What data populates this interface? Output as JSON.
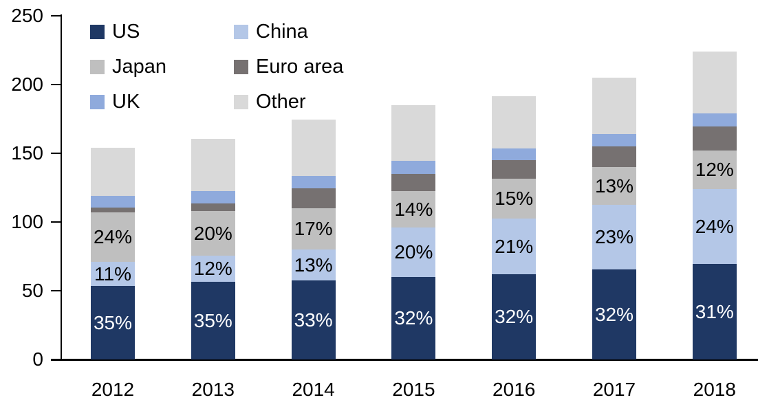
{
  "chart_data": {
    "type": "bar",
    "stacked": true,
    "title": "",
    "xlabel": "",
    "ylabel": "",
    "categories": [
      "2012",
      "2013",
      "2014",
      "2015",
      "2016",
      "2017",
      "2018"
    ],
    "series": [
      {
        "name": "US",
        "color": "#1f3864",
        "label_color": "#ffffff",
        "values": [
          53.5,
          56.5,
          57.5,
          60,
          62,
          65.5,
          69.5
        ],
        "labels": [
          "35%",
          "35%",
          "33%",
          "32%",
          "32%",
          "32%",
          "31%"
        ]
      },
      {
        "name": "China",
        "color": "#b4c7e7",
        "label_color": "#000000",
        "values": [
          17.5,
          19,
          22.5,
          36,
          40.5,
          47,
          54.5
        ],
        "labels": [
          "11%",
          "12%",
          "13%",
          "20%",
          "21%",
          "23%",
          "24%"
        ]
      },
      {
        "name": "Japan",
        "color": "#bfbfbf",
        "label_color": "#000000",
        "values": [
          36,
          32.5,
          30,
          26.5,
          29,
          27.5,
          28
        ],
        "labels": [
          "24%",
          "20%",
          "17%",
          "14%",
          "15%",
          "13%",
          "12%"
        ]
      },
      {
        "name": "Euro area",
        "color": "#767171",
        "label_color": "#000000",
        "values": [
          3.5,
          5.5,
          14.5,
          12.5,
          13.5,
          15,
          17.5
        ],
        "labels": [
          "",
          "",
          "",
          "",
          "",
          "",
          ""
        ]
      },
      {
        "name": "UK",
        "color": "#8faadc",
        "label_color": "#000000",
        "values": [
          8.5,
          9,
          9,
          9.5,
          8.5,
          9,
          9.5
        ],
        "labels": [
          "",
          "",
          "",
          "",
          "",
          "",
          ""
        ]
      },
      {
        "name": "Other",
        "color": "#d9d9d9",
        "label_color": "#000000",
        "values": [
          35,
          38,
          41,
          40.5,
          38,
          41,
          45
        ],
        "labels": [
          "",
          "",
          "",
          "",
          "",
          "",
          ""
        ]
      }
    ],
    "bar_totals": [
      154,
      160.5,
      174.5,
      185,
      191.5,
      205,
      224
    ],
    "ylim": [
      0,
      250
    ],
    "yticks": [
      0,
      50,
      100,
      150,
      200,
      250
    ],
    "grid": false,
    "legend_position": "top-left",
    "legend_order": [
      "US",
      "China",
      "Japan",
      "Euro area",
      "UK",
      "Other"
    ],
    "axis_color": "#000000"
  }
}
